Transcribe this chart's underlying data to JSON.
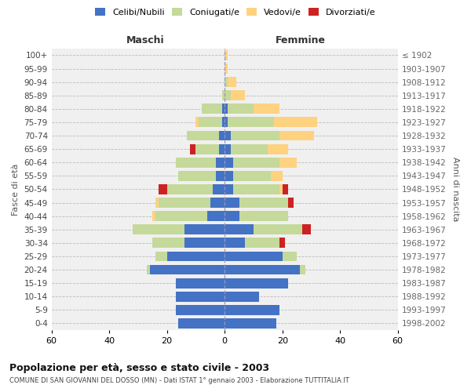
{
  "age_groups": [
    "0-4",
    "5-9",
    "10-14",
    "15-19",
    "20-24",
    "25-29",
    "30-34",
    "35-39",
    "40-44",
    "45-49",
    "50-54",
    "55-59",
    "60-64",
    "65-69",
    "70-74",
    "75-79",
    "80-84",
    "85-89",
    "90-94",
    "95-99",
    "100+"
  ],
  "year_labels": [
    "1998-2002",
    "1993-1997",
    "1988-1992",
    "1983-1987",
    "1978-1982",
    "1973-1977",
    "1968-1972",
    "1963-1967",
    "1958-1962",
    "1953-1957",
    "1948-1952",
    "1943-1947",
    "1938-1942",
    "1933-1937",
    "1928-1932",
    "1923-1927",
    "1918-1922",
    "1913-1917",
    "1908-1912",
    "1903-1907",
    "≤ 1902"
  ],
  "maschi": {
    "celibi": [
      16,
      17,
      17,
      17,
      26,
      20,
      14,
      14,
      6,
      5,
      4,
      3,
      3,
      2,
      2,
      1,
      1,
      0,
      0,
      0,
      0
    ],
    "coniugati": [
      0,
      0,
      0,
      0,
      1,
      4,
      11,
      18,
      18,
      18,
      16,
      13,
      14,
      8,
      11,
      8,
      7,
      1,
      0,
      0,
      0
    ],
    "vedovi": [
      0,
      0,
      0,
      0,
      0,
      0,
      0,
      0,
      1,
      1,
      0,
      0,
      0,
      0,
      0,
      1,
      0,
      0,
      0,
      0,
      0
    ],
    "divorziati": [
      0,
      0,
      0,
      0,
      0,
      0,
      0,
      0,
      0,
      0,
      3,
      0,
      0,
      2,
      0,
      0,
      0,
      0,
      0,
      0,
      0
    ]
  },
  "femmine": {
    "nubili": [
      18,
      19,
      12,
      22,
      26,
      20,
      7,
      10,
      5,
      5,
      3,
      3,
      3,
      2,
      2,
      1,
      1,
      0,
      0,
      0,
      0
    ],
    "coniugate": [
      0,
      0,
      0,
      0,
      2,
      5,
      12,
      17,
      17,
      17,
      16,
      13,
      16,
      13,
      17,
      16,
      9,
      2,
      1,
      0,
      0
    ],
    "vedove": [
      0,
      0,
      0,
      0,
      0,
      0,
      0,
      0,
      0,
      0,
      1,
      4,
      6,
      7,
      12,
      15,
      9,
      5,
      3,
      1,
      1
    ],
    "divorziate": [
      0,
      0,
      0,
      0,
      0,
      0,
      2,
      3,
      0,
      2,
      2,
      0,
      0,
      0,
      0,
      0,
      0,
      0,
      0,
      0,
      0
    ]
  },
  "colors": {
    "celibi_nubili": "#4472C4",
    "coniugati_e": "#C5D99B",
    "vedovi_e": "#FFD280",
    "divorziati_e": "#CC2222"
  },
  "title": "Popolazione per età, sesso e stato civile - 2003",
  "subtitle": "COMUNE DI SAN GIOVANNI DEL DOSSO (MN) - Dati ISTAT 1° gennaio 2003 - Elaborazione TUTTITALIA.IT",
  "xlabel_left": "Maschi",
  "xlabel_right": "Femmine",
  "ylabel_left": "Fasce di età",
  "ylabel_right": "Anni di nascita",
  "xlim": 60,
  "bg_color": "#ffffff",
  "plot_bg_color": "#f0f0f0",
  "grid_color": "#bbbbbb",
  "bar_height": 0.75
}
